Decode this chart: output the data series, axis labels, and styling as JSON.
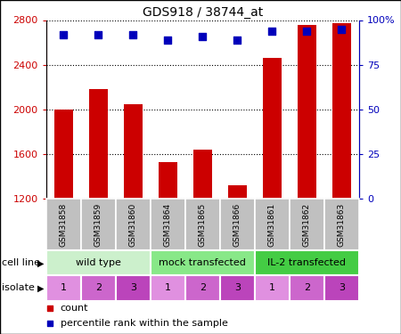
{
  "title": "GDS918 / 38744_at",
  "samples": [
    "GSM31858",
    "GSM31859",
    "GSM31860",
    "GSM31864",
    "GSM31865",
    "GSM31866",
    "GSM31861",
    "GSM31862",
    "GSM31863"
  ],
  "counts": [
    2000,
    2180,
    2050,
    1530,
    1640,
    1320,
    2460,
    2760,
    2770
  ],
  "percentile_ranks": [
    92,
    92,
    92,
    89,
    91,
    89,
    94,
    94,
    95
  ],
  "ylim_left": [
    1200,
    2800
  ],
  "ylim_right": [
    0,
    100
  ],
  "yticks_left": [
    1200,
    1600,
    2000,
    2400,
    2800
  ],
  "yticks_right": [
    0,
    25,
    50,
    75,
    100
  ],
  "ytick_labels_right": [
    "0",
    "25",
    "50",
    "75",
    "100%"
  ],
  "bar_color": "#cc0000",
  "scatter_color": "#0000bb",
  "cell_lines": [
    {
      "label": "wild type",
      "span": [
        0,
        3
      ],
      "color": "#ccf0cc"
    },
    {
      "label": "mock transfected",
      "span": [
        3,
        6
      ],
      "color": "#88e888"
    },
    {
      "label": "IL-2 transfected",
      "span": [
        6,
        9
      ],
      "color": "#44cc44"
    }
  ],
  "isolates": [
    1,
    2,
    3,
    1,
    2,
    3,
    1,
    2,
    3
  ],
  "isolate_colors": [
    "#e090e0",
    "#cc66cc",
    "#bb44bb"
  ],
  "sample_box_color": "#c0c0c0",
  "cell_line_label": "cell line",
  "isolate_label": "isolate",
  "legend_count_label": "count",
  "legend_pct_label": "percentile rank within the sample",
  "title_fontsize": 10,
  "tick_fontsize": 8,
  "label_fontsize": 8,
  "sample_fontsize": 6.5,
  "row_fontsize": 8
}
